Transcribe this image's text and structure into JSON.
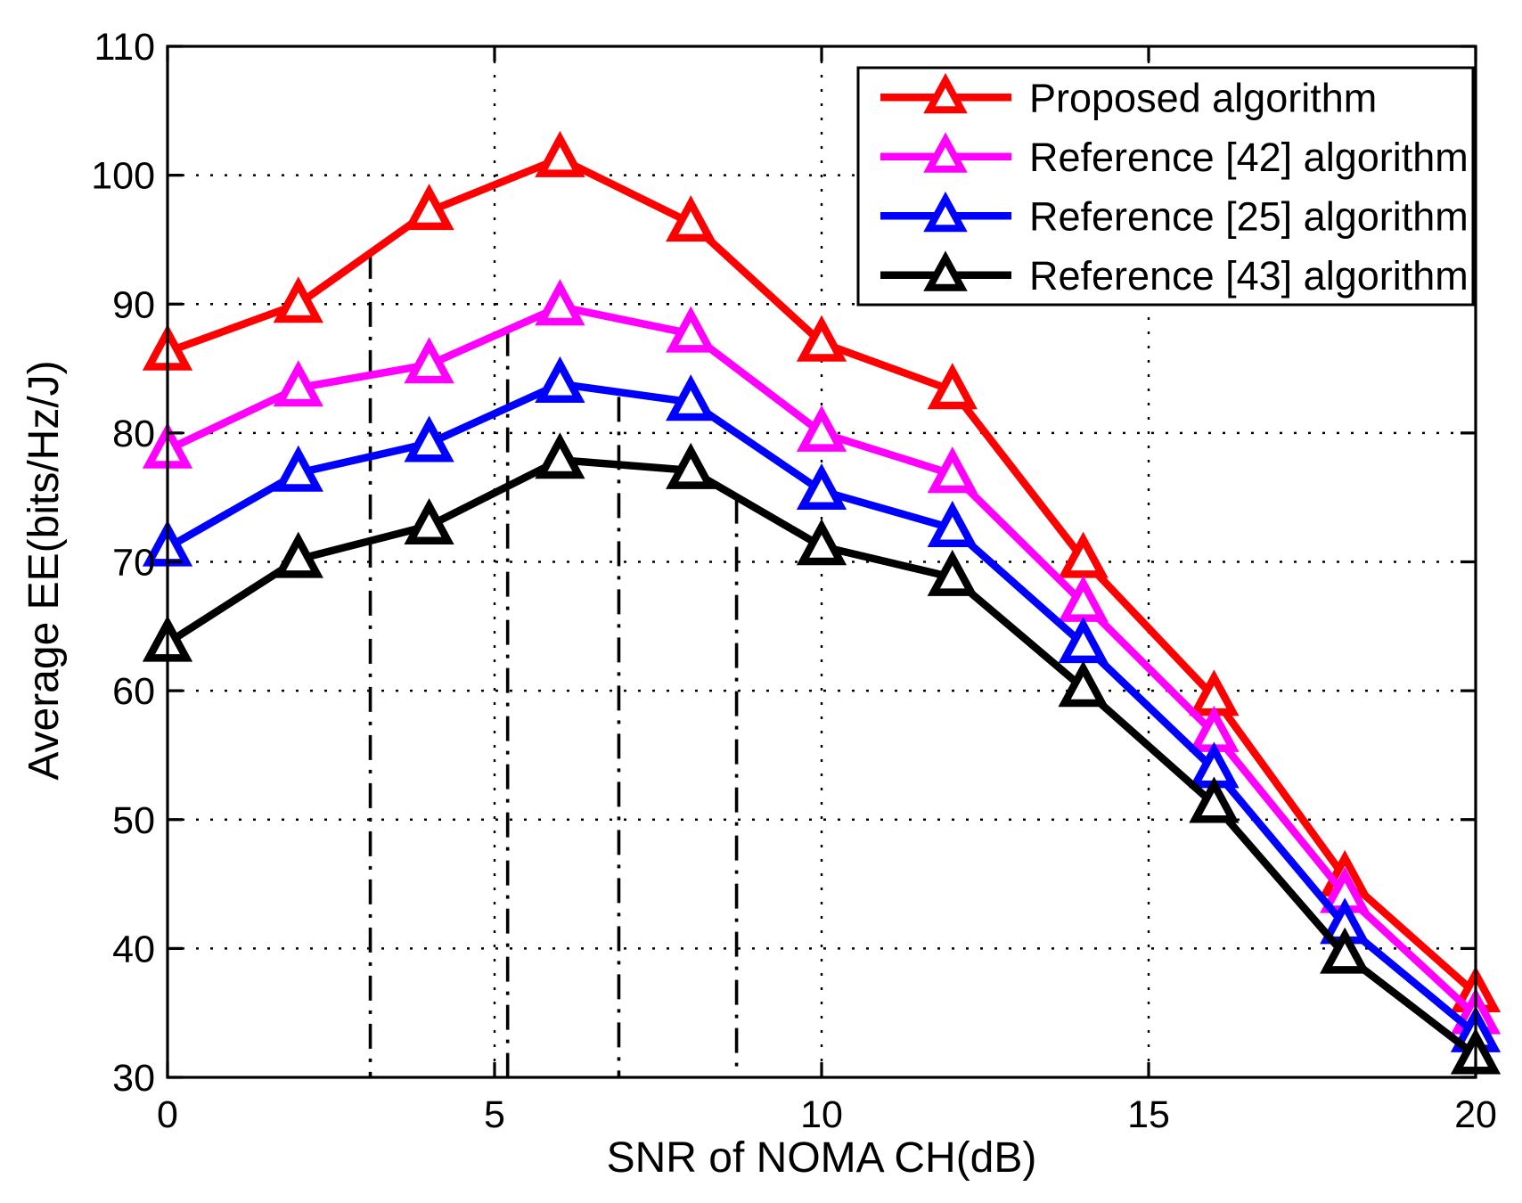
{
  "chart_data": {
    "type": "line",
    "title": "",
    "xlabel": "SNR of NOMA CH(dB)",
    "ylabel": "Average EE(bits/Hz/J)",
    "xlim": [
      0,
      20
    ],
    "ylim": [
      30,
      110
    ],
    "xticks": [
      0,
      5,
      10,
      15,
      20
    ],
    "yticks": [
      30,
      40,
      50,
      60,
      70,
      80,
      90,
      100,
      110
    ],
    "grid": "dotted",
    "grid_color": "#000000",
    "axis_color": "#000000",
    "background_color": "#ffffff",
    "legend_position": "top-right",
    "x": [
      0,
      2,
      4,
      6,
      8,
      10,
      12,
      14,
      16,
      18,
      20
    ],
    "series": [
      {
        "name": "Proposed algorithm",
        "color": "#ff0000",
        "marker": "triangle-up",
        "values": [
          86.3,
          90.0,
          97.2,
          101.3,
          96.3,
          87.0,
          83.3,
          70.2,
          59.5,
          45.5,
          36.5
        ]
      },
      {
        "name": "Reference [42] algorithm",
        "color": "#ff00ff",
        "marker": "triangle-up",
        "values": [
          78.7,
          83.5,
          85.3,
          89.8,
          87.7,
          80.0,
          76.8,
          66.8,
          56.7,
          44.2,
          34.8
        ]
      },
      {
        "name": "Reference [25] algorithm",
        "color": "#0000ff",
        "marker": "triangle-up",
        "values": [
          71.1,
          76.9,
          79.2,
          83.8,
          82.4,
          75.5,
          72.6,
          63.6,
          53.9,
          41.8,
          33.4
        ]
      },
      {
        "name": "Reference [43] algorithm",
        "color": "#000000",
        "marker": "triangle-up",
        "values": [
          63.7,
          70.2,
          72.8,
          77.9,
          77.1,
          71.2,
          68.8,
          60.2,
          51.2,
          39.5,
          31.7
        ]
      }
    ],
    "annotations": {
      "vlines": [
        {
          "x": 3.1,
          "y_top": 93.9,
          "style": "dash-dot"
        },
        {
          "x": 5.2,
          "y_top": 87.9,
          "style": "dash-dot"
        },
        {
          "x": 6.9,
          "y_top": 82.8,
          "style": "dash-dot"
        },
        {
          "x": 8.7,
          "y_top": 74.9,
          "style": "dash-dot"
        }
      ]
    }
  }
}
